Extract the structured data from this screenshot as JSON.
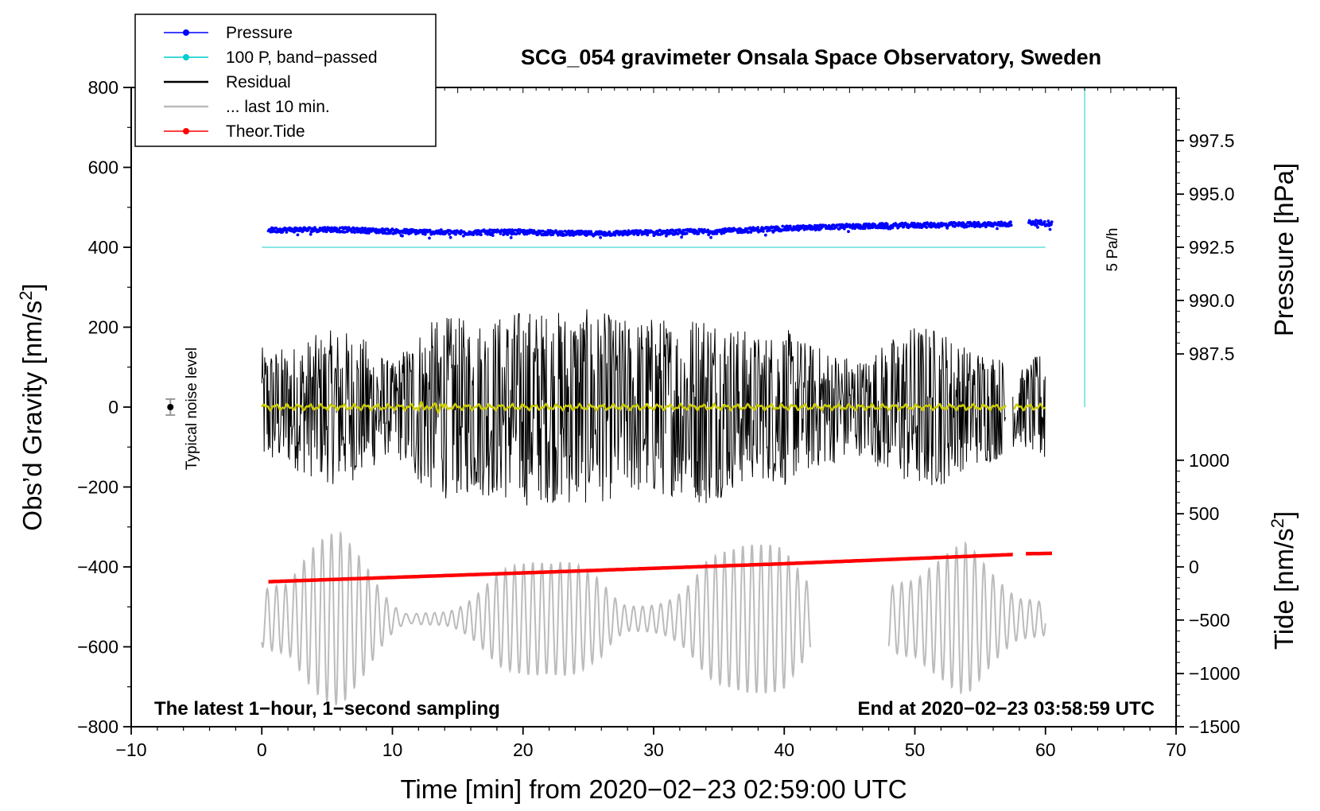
{
  "chart_data": {
    "type": "line",
    "title": "SCG_054 gravimeter Onsala Space Observatory, Sweden",
    "xlabel": "Time [min] from 2020−02−23 02:59:00 UTC",
    "ylabel_left": "Obs’d Gravity [nm/s",
    "ylabel_left_sup": "2",
    "ylabel_left_end": "]",
    "ylabel_right_top": "Pressure [hPa]",
    "ylabel_right_bottom": "Tide [nm/s",
    "ylabel_right_bottom_sup": "2",
    "ylabel_right_bottom_end": "]",
    "xlim": [
      -10,
      70
    ],
    "ylim": [
      -800,
      800
    ],
    "x_ticks": [
      -10,
      0,
      10,
      20,
      30,
      40,
      50,
      60,
      70
    ],
    "x_tick_labels": [
      "−10",
      "0",
      "10",
      "20",
      "30",
      "40",
      "50",
      "60",
      "70"
    ],
    "y_ticks": [
      800,
      600,
      400,
      200,
      0,
      -200,
      -400,
      -600,
      -800
    ],
    "y_tick_labels": [
      "800",
      "600",
      "400",
      "200",
      "0",
      "−200",
      "−400",
      "−600",
      "−800"
    ],
    "pressure_axis": {
      "ticks": [
        997.5,
        995.0,
        992.5,
        990.0,
        987.5
      ],
      "tick_labels": [
        "997.5",
        "995.0",
        "992.5",
        "990.0",
        "987.5"
      ],
      "gravity_equivalent": [
        667,
        533,
        400,
        267,
        133
      ]
    },
    "tide_axis": {
      "ticks": [
        1000,
        500,
        0,
        -500,
        -1000,
        -1500
      ],
      "tick_labels": [
        "1000",
        "500",
        "0",
        "−500",
        "−1000",
        "−1500"
      ],
      "gravity_equivalent": [
        -133,
        -267,
        -400,
        -533,
        -667,
        -800
      ]
    },
    "legend": {
      "placement": "top-left",
      "entries": [
        {
          "label": "Pressure",
          "color": "#0000ff",
          "style": "line-marker"
        },
        {
          "label": "100 P, band−passed",
          "color": "#00cccc",
          "style": "line-marker"
        },
        {
          "label": "Residual",
          "color": "#000000",
          "style": "line"
        },
        {
          "label": "... last 10 min.",
          "color": "#bbbbbb",
          "style": "line"
        },
        {
          "label": "Theor.Tide",
          "color": "#ff0000",
          "style": "line-marker"
        }
      ]
    },
    "series": [
      {
        "name": "Pressure",
        "color": "#0000ff",
        "x_range": [
          0.5,
          60.5
        ],
        "gap": [
          57.4,
          58.7
        ],
        "points_x": [
          0.5,
          5,
          10,
          15,
          20,
          25,
          30,
          35,
          40,
          45,
          50,
          55,
          57.2,
          58.8,
          60.5
        ],
        "points_y": [
          443,
          445,
          440,
          437,
          438,
          434,
          437,
          440,
          447,
          452,
          455,
          457,
          458,
          462,
          460
        ],
        "noise_amplitude": 6
      },
      {
        "name": "100 P, band−passed",
        "color": "#66dddd",
        "x_range": [
          0,
          60
        ],
        "value": 400
      },
      {
        "name": "Residual",
        "color": "#000000",
        "x_range": [
          0,
          60
        ],
        "gap": [
          57,
          57.5
        ],
        "typical_range": [
          -300,
          330
        ],
        "envelope_x": [
          0,
          2,
          4,
          6,
          8,
          10,
          12,
          14,
          16,
          18,
          20,
          22,
          24,
          26,
          28,
          30,
          32,
          34,
          36,
          38,
          40,
          42,
          44,
          46,
          48,
          50,
          52,
          54,
          56,
          58,
          60
        ],
        "envelope_amp": [
          150,
          150,
          180,
          200,
          170,
          110,
          200,
          230,
          220,
          230,
          250,
          240,
          250,
          240,
          220,
          230,
          220,
          250,
          210,
          180,
          200,
          160,
          140,
          120,
          170,
          210,
          200,
          150,
          140,
          90,
          150
        ]
      },
      {
        "name": "Smoothed residual",
        "color": "#cccc00",
        "x_range": [
          0,
          60
        ],
        "value": 0
      },
      {
        "name": "... last 10 min.",
        "color": "#bbbbbb",
        "segments": [
          [
            0,
            42
          ],
          [
            48,
            60
          ]
        ],
        "center": -530,
        "envelope_x": [
          0,
          2,
          4,
          6,
          8,
          10,
          12,
          14,
          16,
          18,
          20,
          22,
          24,
          26,
          28,
          30,
          32,
          34,
          36,
          38,
          40,
          42,
          48,
          50,
          52,
          54,
          56,
          58,
          60
        ],
        "envelope_amp": [
          150,
          120,
          200,
          260,
          240,
          170,
          90,
          110,
          130,
          160,
          140,
          130,
          160,
          170,
          60,
          140,
          170,
          220,
          180,
          170,
          180,
          120,
          170,
          120,
          150,
          200,
          150,
          100,
          180
        ]
      },
      {
        "name": "Theor.Tide",
        "color": "#ff0000",
        "points_x": [
          0.5,
          20,
          40,
          57.5,
          58.5,
          60.5
        ],
        "points_y": [
          -437,
          -415,
          -392,
          -369,
          -367,
          -366
        ],
        "gap": [
          57.5,
          58.5
        ]
      },
      {
        "name": "5 Pa/h",
        "color": "#66dddd",
        "x": 63,
        "y_range": [
          0,
          800
        ]
      }
    ],
    "annotations": {
      "noise_label": "Typical noise level",
      "noise_marker": {
        "x": -7,
        "y": 0,
        "err": 20
      },
      "rate_label": "5 Pa/h",
      "bottom_left": "The latest 1−hour, 1−second sampling",
      "bottom_right": "End at 2020−02−23 03:58:59 UTC"
    }
  }
}
